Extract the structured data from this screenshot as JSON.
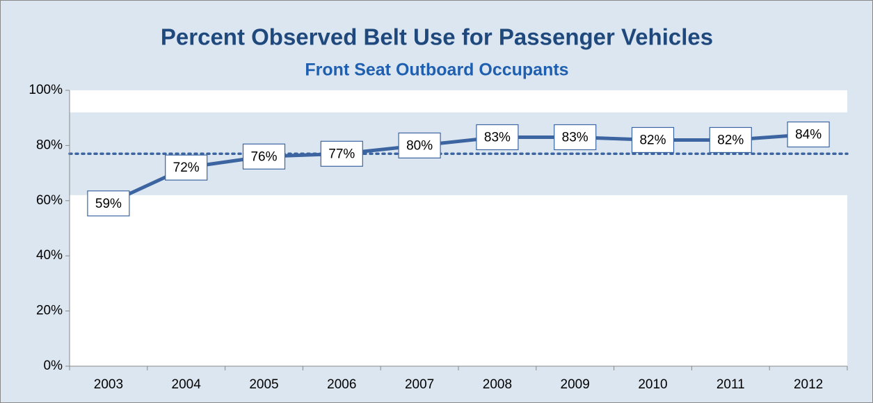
{
  "chart_data": {
    "type": "line",
    "title": "Percent Observed Belt Use for Passenger Vehicles",
    "subtitle": "Front Seat Outboard Occupants",
    "categories": [
      "2003",
      "2004",
      "2005",
      "2006",
      "2007",
      "2008",
      "2009",
      "2010",
      "2011",
      "2012"
    ],
    "values": [
      59,
      72,
      76,
      77,
      80,
      83,
      83,
      82,
      82,
      84
    ],
    "value_labels": [
      "59%",
      "72%",
      "76%",
      "77%",
      "80%",
      "83%",
      "83%",
      "82%",
      "82%",
      "84%"
    ],
    "color": "#3b64a0",
    "band": [
      62,
      92
    ],
    "reference_line": 77,
    "ylim": [
      0,
      100
    ],
    "yticks": [
      {
        "value": 0,
        "label": "0%"
      },
      {
        "value": 20,
        "label": "20%"
      },
      {
        "value": 40,
        "label": "40%"
      },
      {
        "value": 60,
        "label": "60%"
      },
      {
        "value": 80,
        "label": "80%"
      },
      {
        "value": 100,
        "label": "100%"
      }
    ]
  }
}
